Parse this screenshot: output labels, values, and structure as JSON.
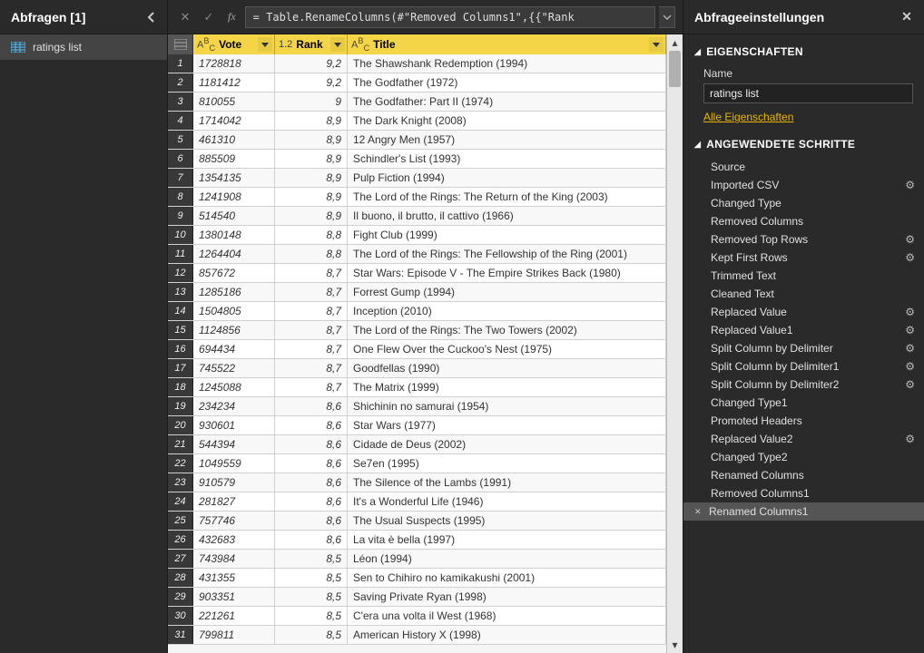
{
  "left": {
    "title": "Abfragen [1]",
    "queryName": "ratings list"
  },
  "formula": {
    "text": "= Table.RenameColumns(#\"Removed Columns1\",{{\"Rank"
  },
  "columns": {
    "vote": {
      "label": "Vote",
      "typeIcon": "Aᴮᴄ"
    },
    "rank": {
      "label": "Rank",
      "typeIcon": "1.2"
    },
    "title": {
      "label": "Title",
      "typeIcon": "Aᴮᴄ"
    }
  },
  "rows": [
    {
      "n": 1,
      "vote": "1728818",
      "rank": "9,2",
      "title": "The Shawshank Redemption (1994)"
    },
    {
      "n": 2,
      "vote": "1181412",
      "rank": "9,2",
      "title": "The Godfather (1972)"
    },
    {
      "n": 3,
      "vote": "810055",
      "rank": "9",
      "title": "The Godfather: Part II (1974)"
    },
    {
      "n": 4,
      "vote": "1714042",
      "rank": "8,9",
      "title": "The Dark Knight (2008)"
    },
    {
      "n": 5,
      "vote": "461310",
      "rank": "8,9",
      "title": "12 Angry Men (1957)"
    },
    {
      "n": 6,
      "vote": "885509",
      "rank": "8,9",
      "title": "Schindler's List (1993)"
    },
    {
      "n": 7,
      "vote": "1354135",
      "rank": "8,9",
      "title": "Pulp Fiction (1994)"
    },
    {
      "n": 8,
      "vote": "1241908",
      "rank": "8,9",
      "title": "The Lord of the Rings: The Return of the King (2003)"
    },
    {
      "n": 9,
      "vote": "514540",
      "rank": "8,9",
      "title": "Il buono, il brutto, il cattivo (1966)"
    },
    {
      "n": 10,
      "vote": "1380148",
      "rank": "8,8",
      "title": "Fight Club (1999)"
    },
    {
      "n": 11,
      "vote": "1264404",
      "rank": "8,8",
      "title": "The Lord of the Rings: The Fellowship of the Ring (2001)"
    },
    {
      "n": 12,
      "vote": "857672",
      "rank": "8,7",
      "title": "Star Wars: Episode V - The Empire Strikes Back (1980)"
    },
    {
      "n": 13,
      "vote": "1285186",
      "rank": "8,7",
      "title": "Forrest Gump (1994)"
    },
    {
      "n": 14,
      "vote": "1504805",
      "rank": "8,7",
      "title": "Inception (2010)"
    },
    {
      "n": 15,
      "vote": "1124856",
      "rank": "8,7",
      "title": "The Lord of the Rings: The Two Towers (2002)"
    },
    {
      "n": 16,
      "vote": "694434",
      "rank": "8,7",
      "title": "One Flew Over the Cuckoo's Nest (1975)"
    },
    {
      "n": 17,
      "vote": "745522",
      "rank": "8,7",
      "title": "Goodfellas (1990)"
    },
    {
      "n": 18,
      "vote": "1245088",
      "rank": "8,7",
      "title": "The Matrix (1999)"
    },
    {
      "n": 19,
      "vote": "234234",
      "rank": "8,6",
      "title": "Shichinin no samurai (1954)"
    },
    {
      "n": 20,
      "vote": "930601",
      "rank": "8,6",
      "title": "Star Wars (1977)"
    },
    {
      "n": 21,
      "vote": "544394",
      "rank": "8,6",
      "title": "Cidade de Deus (2002)"
    },
    {
      "n": 22,
      "vote": "1049559",
      "rank": "8,6",
      "title": "Se7en (1995)"
    },
    {
      "n": 23,
      "vote": "910579",
      "rank": "8,6",
      "title": "The Silence of the Lambs (1991)"
    },
    {
      "n": 24,
      "vote": "281827",
      "rank": "8,6",
      "title": "It's a Wonderful Life (1946)"
    },
    {
      "n": 25,
      "vote": "757746",
      "rank": "8,6",
      "title": "The Usual Suspects (1995)"
    },
    {
      "n": 26,
      "vote": "432683",
      "rank": "8,6",
      "title": "La vita è bella (1997)"
    },
    {
      "n": 27,
      "vote": "743984",
      "rank": "8,5",
      "title": "Léon (1994)"
    },
    {
      "n": 28,
      "vote": "431355",
      "rank": "8,5",
      "title": "Sen to Chihiro no kamikakushi (2001)"
    },
    {
      "n": 29,
      "vote": "903351",
      "rank": "8,5",
      "title": "Saving Private Ryan (1998)"
    },
    {
      "n": 30,
      "vote": "221261",
      "rank": "8,5",
      "title": "C'era una volta il West (1968)"
    },
    {
      "n": 31,
      "vote": "799811",
      "rank": "8,5",
      "title": "American History X (1998)"
    }
  ],
  "right": {
    "header": "Abfrageeinstellungen",
    "propsTitle": "EIGENSCHAFTEN",
    "nameLabel": "Name",
    "nameValue": "ratings list",
    "allProps": "Alle Eigenschaften",
    "stepsTitle": "ANGEWENDETE SCHRITTE",
    "steps": [
      {
        "label": "Source",
        "gear": false
      },
      {
        "label": "Imported CSV",
        "gear": true
      },
      {
        "label": "Changed Type",
        "gear": false
      },
      {
        "label": "Removed Columns",
        "gear": false
      },
      {
        "label": "Removed Top Rows",
        "gear": true
      },
      {
        "label": "Kept First Rows",
        "gear": true
      },
      {
        "label": "Trimmed Text",
        "gear": false
      },
      {
        "label": "Cleaned Text",
        "gear": false
      },
      {
        "label": "Replaced Value",
        "gear": true
      },
      {
        "label": "Replaced Value1",
        "gear": true
      },
      {
        "label": "Split Column by Delimiter",
        "gear": true
      },
      {
        "label": "Split Column by Delimiter1",
        "gear": true
      },
      {
        "label": "Split Column by Delimiter2",
        "gear": true
      },
      {
        "label": "Changed Type1",
        "gear": false
      },
      {
        "label": "Promoted Headers",
        "gear": false
      },
      {
        "label": "Replaced Value2",
        "gear": true
      },
      {
        "label": "Changed Type2",
        "gear": false
      },
      {
        "label": "Renamed Columns",
        "gear": false
      },
      {
        "label": "Removed Columns1",
        "gear": false
      },
      {
        "label": "Renamed Columns1",
        "gear": false,
        "selected": true
      }
    ]
  }
}
